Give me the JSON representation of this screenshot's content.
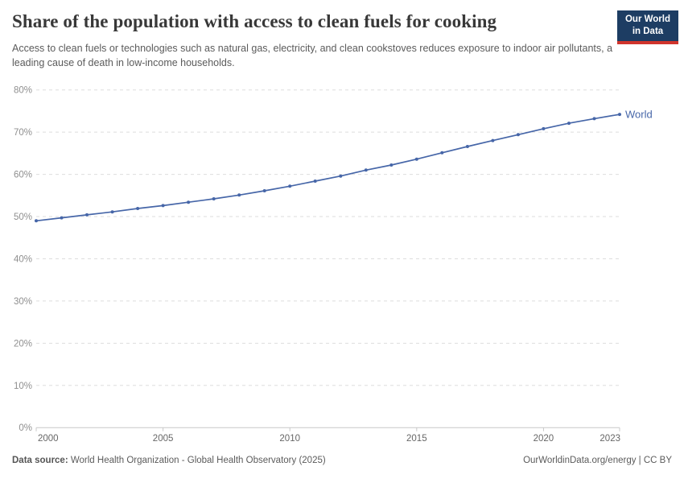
{
  "header": {
    "title": "Share of the population with access to clean fuels for cooking",
    "subtitle": "Access to clean fuels or technologies such as natural gas, electricity, and clean cookstoves reduces exposure to indoor air pollutants, a leading cause of death in low-income households.",
    "logo": {
      "line1": "Our World",
      "line2": "in Data",
      "bg_color": "#1d3d63",
      "accent_color": "#d0342c"
    }
  },
  "chart_data": {
    "type": "line",
    "title": "Share of the population with access to clean fuels for cooking",
    "x": [
      2000,
      2001,
      2002,
      2003,
      2004,
      2005,
      2006,
      2007,
      2008,
      2009,
      2010,
      2011,
      2012,
      2013,
      2014,
      2015,
      2016,
      2017,
      2018,
      2019,
      2020,
      2021,
      2022,
      2023
    ],
    "series": [
      {
        "name": "World",
        "color": "#4666a8",
        "values": [
          49.0,
          49.7,
          50.4,
          51.1,
          51.9,
          52.6,
          53.4,
          54.2,
          55.1,
          56.1,
          57.2,
          58.4,
          59.6,
          61.0,
          62.2,
          63.6,
          65.1,
          66.6,
          68.0,
          69.4,
          70.8,
          72.1,
          73.2,
          74.2
        ]
      }
    ],
    "ylim": [
      0,
      80
    ],
    "ytick_step": 10,
    "ytick_suffix": "%",
    "xticks": [
      2000,
      2005,
      2010,
      2015,
      2020,
      2023
    ],
    "grid": "horizontal-dashed",
    "legend_position": "end-of-line",
    "colors": {
      "gridline": "#dddddd",
      "axis": "#c8c8c8",
      "ytick_label": "#8f8f8f",
      "xtick_label": "#666666"
    }
  },
  "footer": {
    "datasource_label": "Data source:",
    "datasource_text": " World Health Organization - Global Health Observatory (2025)",
    "credit": "OurWorldinData.org/energy | CC BY"
  }
}
